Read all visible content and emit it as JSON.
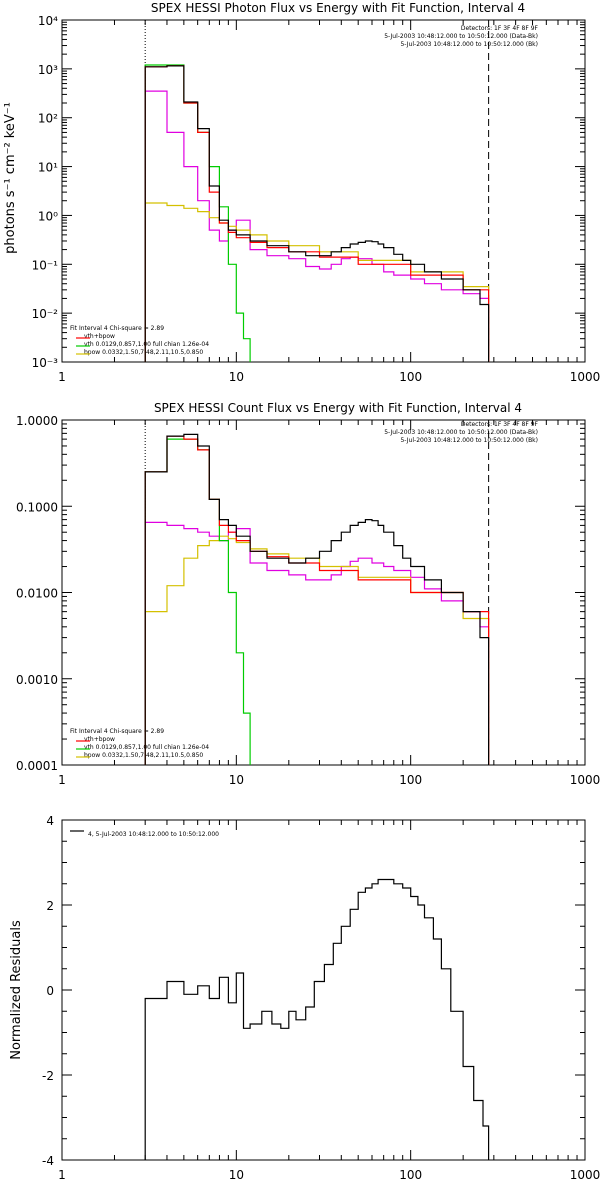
{
  "colors": {
    "data": "#000000",
    "fit_total": "#ff0000",
    "vth": "#00cc00",
    "bpow": "#d4c000",
    "background": "#e000e0"
  },
  "chart_data": [
    {
      "type": "line",
      "title": "SPEX HESSI Photon Flux vs Energy with Fit Function, Interval 4",
      "xlabel": "",
      "ylabel": "photons s⁻¹ cm⁻² keV⁻¹",
      "xscale": "log",
      "yscale": "log",
      "xlim": [
        1,
        1000
      ],
      "ylim": [
        0.001,
        10000
      ],
      "xticks": [
        "1",
        "10",
        "100",
        "1000"
      ],
      "yticks": [
        "10⁻³",
        "10⁻²",
        "10⁻¹",
        "10⁰",
        "10¹",
        "10²",
        "10³",
        "10⁴"
      ],
      "vlines": [
        3,
        280
      ],
      "info": [
        "Detectors: 1F 3F 4F 8F 9F",
        "5-Jul-2003 10:48:12.000 to 10:50:12.000 (Data-Bk)",
        "5-Jul-2003 10:48:12.000 to 10:50:12.000 (Bk)"
      ],
      "fit_legend": [
        "Fit Interval  4    Chi-square = 2.89",
        "vth+bpow",
        "vth 0.0129,0.857,1.00  full chian 1.26e-04",
        "bpow 0.0332,1.50,7.48,2.11,10.5,0.850"
      ],
      "series": [
        {
          "name": "",
          "color_key": "data",
          "x": [
            3,
            4,
            5,
            6,
            7,
            8,
            9,
            10,
            12,
            15,
            20,
            25,
            30,
            35,
            40,
            45,
            50,
            55,
            60,
            65,
            70,
            80,
            90,
            100,
            120,
            150,
            200,
            250,
            280
          ],
          "y": [
            1100,
            1150,
            210,
            60,
            4,
            0.8,
            0.5,
            0.4,
            0.3,
            0.24,
            0.18,
            0.15,
            0.15,
            0.18,
            0.22,
            0.26,
            0.28,
            0.3,
            0.29,
            0.26,
            0.22,
            0.16,
            0.12,
            0.1,
            0.07,
            0.05,
            0.03,
            0.015,
            0.005
          ]
        },
        {
          "name": "",
          "color_key": "fit_total",
          "x": [
            3,
            4,
            5,
            6,
            7,
            8,
            9,
            10,
            12,
            15,
            20,
            30,
            50,
            100,
            200,
            280
          ],
          "y": [
            1100,
            1150,
            200,
            50,
            3,
            0.7,
            0.45,
            0.35,
            0.28,
            0.22,
            0.18,
            0.14,
            0.1,
            0.06,
            0.03,
            0.02
          ]
        },
        {
          "name": "",
          "color_key": "vth",
          "x": [
            3,
            4,
            5,
            6,
            7,
            8,
            9,
            10,
            11,
            12
          ],
          "y": [
            1200,
            1200,
            200,
            50,
            10,
            1.5,
            0.1,
            0.01,
            0.003,
            0.001
          ]
        },
        {
          "name": "",
          "color_key": "bpow",
          "x": [
            3,
            4,
            5,
            6,
            7,
            8,
            9,
            10,
            12,
            15,
            20,
            30,
            50,
            100,
            200,
            280
          ],
          "y": [
            1.8,
            1.6,
            1.4,
            1.2,
            0.9,
            0.7,
            0.6,
            0.5,
            0.4,
            0.3,
            0.24,
            0.18,
            0.12,
            0.07,
            0.035,
            0.025
          ]
        },
        {
          "name": "",
          "color_key": "background",
          "x": [
            3,
            4,
            5,
            6,
            7,
            8,
            9,
            10,
            12,
            15,
            20,
            25,
            30,
            35,
            40,
            45,
            50,
            60,
            70,
            80,
            100,
            120,
            150,
            200,
            250,
            280
          ],
          "y": [
            350,
            50,
            10,
            2,
            0.5,
            0.3,
            0.5,
            0.8,
            0.2,
            0.15,
            0.13,
            0.09,
            0.08,
            0.1,
            0.13,
            0.14,
            0.13,
            0.1,
            0.07,
            0.06,
            0.05,
            0.04,
            0.03,
            0.025,
            0.02,
            0.005
          ]
        }
      ]
    },
    {
      "type": "line",
      "title": "SPEX HESSI Count Flux vs Energy with Fit Function, Interval 4",
      "xlabel": "",
      "ylabel": "",
      "xscale": "log",
      "yscale": "log",
      "xlim": [
        1,
        1000
      ],
      "ylim": [
        0.0001,
        1.0
      ],
      "xticks": [
        "1",
        "10",
        "100",
        "1000"
      ],
      "yticks": [
        "0.0001",
        "0.0010",
        "0.0100",
        "0.1000",
        "1.0000"
      ],
      "vlines": [
        3,
        280
      ],
      "info": [
        "Detectors: 1F 3F 4F 8F 9F",
        "5-Jul-2003 10:48:12.000 to 10:50:12.000 (Data-Bk)",
        "5-Jul-2003 10:48:12.000 to 10:50:12.000 (Bk)"
      ],
      "fit_legend": [
        "Fit Interval  4    Chi-square = 2.89",
        "vth+bpow",
        "vth 0.0129,0.857,1.00  full chian 1.26e-04",
        "bpow 0.0332,1.50,7.48,2.11,10.5,0.850"
      ],
      "series": [
        {
          "name": "",
          "color_key": "data",
          "x": [
            3,
            4,
            5,
            6,
            7,
            8,
            9,
            10,
            12,
            15,
            20,
            25,
            30,
            35,
            40,
            45,
            50,
            55,
            60,
            65,
            70,
            80,
            90,
            100,
            120,
            150,
            200,
            250,
            280
          ],
          "y": [
            0.25,
            0.65,
            0.68,
            0.5,
            0.12,
            0.07,
            0.06,
            0.045,
            0.03,
            0.025,
            0.022,
            0.025,
            0.03,
            0.04,
            0.05,
            0.06,
            0.065,
            0.07,
            0.068,
            0.06,
            0.05,
            0.035,
            0.025,
            0.02,
            0.014,
            0.01,
            0.006,
            0.003,
            0.0009
          ]
        },
        {
          "name": "",
          "color_key": "fit_total",
          "x": [
            3,
            4,
            5,
            6,
            7,
            8,
            9,
            10,
            12,
            15,
            20,
            30,
            50,
            100,
            200,
            280
          ],
          "y": [
            0.25,
            0.65,
            0.6,
            0.45,
            0.12,
            0.06,
            0.05,
            0.04,
            0.03,
            0.026,
            0.022,
            0.018,
            0.014,
            0.01,
            0.006,
            0.003
          ]
        },
        {
          "name": "",
          "color_key": "vth",
          "x": [
            3,
            4,
            5,
            6,
            7,
            8,
            9,
            10,
            11,
            12
          ],
          "y": [
            0.25,
            0.6,
            0.6,
            0.45,
            0.12,
            0.04,
            0.01,
            0.002,
            0.0004,
            0.0001
          ]
        },
        {
          "name": "",
          "color_key": "bpow",
          "x": [
            3,
            4,
            5,
            6,
            7,
            8,
            9,
            10,
            12,
            15,
            20,
            30,
            50,
            100,
            200,
            280
          ],
          "y": [
            0.006,
            0.012,
            0.025,
            0.035,
            0.04,
            0.045,
            0.042,
            0.038,
            0.032,
            0.028,
            0.025,
            0.02,
            0.015,
            0.01,
            0.005,
            0.003
          ]
        },
        {
          "name": "",
          "color_key": "background",
          "x": [
            3,
            4,
            5,
            6,
            7,
            8,
            9,
            10,
            12,
            15,
            20,
            25,
            30,
            35,
            40,
            45,
            50,
            60,
            70,
            80,
            100,
            120,
            150,
            200,
            250,
            280
          ],
          "y": [
            0.065,
            0.06,
            0.055,
            0.05,
            0.045,
            0.04,
            0.05,
            0.055,
            0.022,
            0.018,
            0.016,
            0.014,
            0.014,
            0.016,
            0.02,
            0.023,
            0.025,
            0.022,
            0.02,
            0.018,
            0.015,
            0.011,
            0.008,
            0.006,
            0.004,
            0.002
          ]
        }
      ]
    },
    {
      "type": "line",
      "title": "",
      "xlabel": "",
      "ylabel": "Normalized Residuals",
      "xscale": "log",
      "yscale": "linear",
      "xlim": [
        1,
        1000
      ],
      "ylim": [
        -4,
        4
      ],
      "xticks": [
        "1",
        "10",
        "100",
        "1000"
      ],
      "yticks": [
        "-4",
        "-2",
        "0",
        "2",
        "4"
      ],
      "vlines": [],
      "legend": "4,  5-Jul-2003 10:48:12.000 to 10:50:12.000",
      "series": [
        {
          "name": "",
          "color_key": "data",
          "x": [
            3,
            4,
            5,
            6,
            7,
            8,
            9,
            10,
            11,
            12,
            14,
            16,
            18,
            20,
            22,
            25,
            28,
            32,
            36,
            40,
            45,
            50,
            55,
            60,
            65,
            70,
            75,
            80,
            90,
            100,
            110,
            120,
            135,
            150,
            170,
            200,
            230,
            260,
            280
          ],
          "y": [
            -0.2,
            0.2,
            -0.1,
            0.1,
            -0.2,
            0.3,
            -0.3,
            0.4,
            -0.9,
            -0.8,
            -0.5,
            -0.8,
            -0.9,
            -0.5,
            -0.7,
            -0.4,
            0.2,
            0.6,
            1.1,
            1.5,
            1.9,
            2.3,
            2.4,
            2.5,
            2.6,
            2.6,
            2.6,
            2.5,
            2.4,
            2.2,
            2.0,
            1.7,
            1.2,
            0.5,
            -0.5,
            -1.8,
            -2.6,
            -3.2,
            -4.0
          ]
        }
      ]
    }
  ]
}
